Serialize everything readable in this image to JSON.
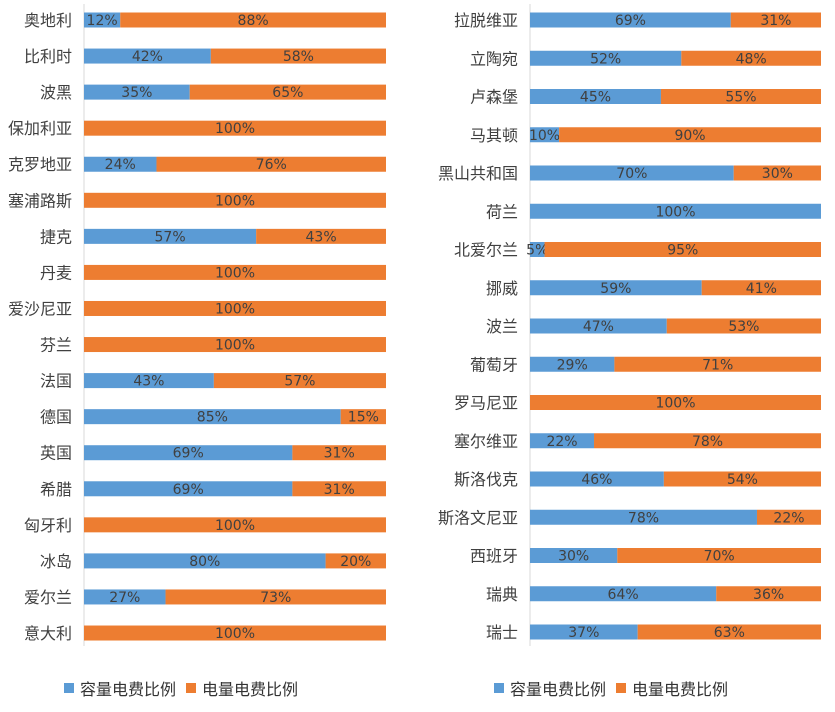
{
  "chart_data": [
    {
      "type": "bar",
      "orientation": "horizontal",
      "stacked": true,
      "normalized_percent": true,
      "title": "",
      "xlabel": "",
      "ylabel": "",
      "xlim": [
        0,
        100
      ],
      "grid": false,
      "legend_position": "bottom",
      "categories": [
        "奥地利",
        "比利时",
        "波黑",
        "保加利亚",
        "克罗地亚",
        "塞浦路斯",
        "捷克",
        "丹麦",
        "爱沙尼亚",
        "芬兰",
        "法国",
        "德国",
        "英国",
        "希腊",
        "匈牙利",
        "冰岛",
        "爱尔兰",
        "意大利"
      ],
      "series": [
        {
          "name": "容量电费比例",
          "color": "#5B9BD5",
          "values": [
            12,
            42,
            35,
            0,
            24,
            0,
            57,
            0,
            0,
            0,
            43,
            85,
            69,
            69,
            0,
            80,
            27,
            0
          ]
        },
        {
          "name": "电量电费比例",
          "color": "#ED7D31",
          "values": [
            88,
            58,
            65,
            100,
            76,
            100,
            43,
            100,
            100,
            100,
            57,
            15,
            31,
            31,
            100,
            20,
            73,
            100
          ]
        }
      ]
    },
    {
      "type": "bar",
      "orientation": "horizontal",
      "stacked": true,
      "normalized_percent": true,
      "title": "",
      "xlabel": "",
      "ylabel": "",
      "xlim": [
        0,
        100
      ],
      "grid": false,
      "legend_position": "bottom",
      "categories": [
        "拉脱维亚",
        "立陶宛",
        "卢森堡",
        "马其顿",
        "黑山共和国",
        "荷兰",
        "北爱尔兰",
        "挪威",
        "波兰",
        "葡萄牙",
        "罗马尼亚",
        "塞尔维亚",
        "斯洛伐克",
        "斯洛文尼亚",
        "西班牙",
        "瑞典",
        "瑞士"
      ],
      "series": [
        {
          "name": "容量电费比例",
          "color": "#5B9BD5",
          "values": [
            69,
            52,
            45,
            10,
            70,
            100,
            5,
            59,
            47,
            29,
            0,
            22,
            46,
            78,
            30,
            64,
            37
          ]
        },
        {
          "name": "电量电费比例",
          "color": "#ED7D31",
          "values": [
            31,
            48,
            55,
            90,
            30,
            0,
            95,
            41,
            53,
            71,
            100,
            78,
            54,
            22,
            70,
            36,
            63
          ]
        }
      ]
    }
  ]
}
